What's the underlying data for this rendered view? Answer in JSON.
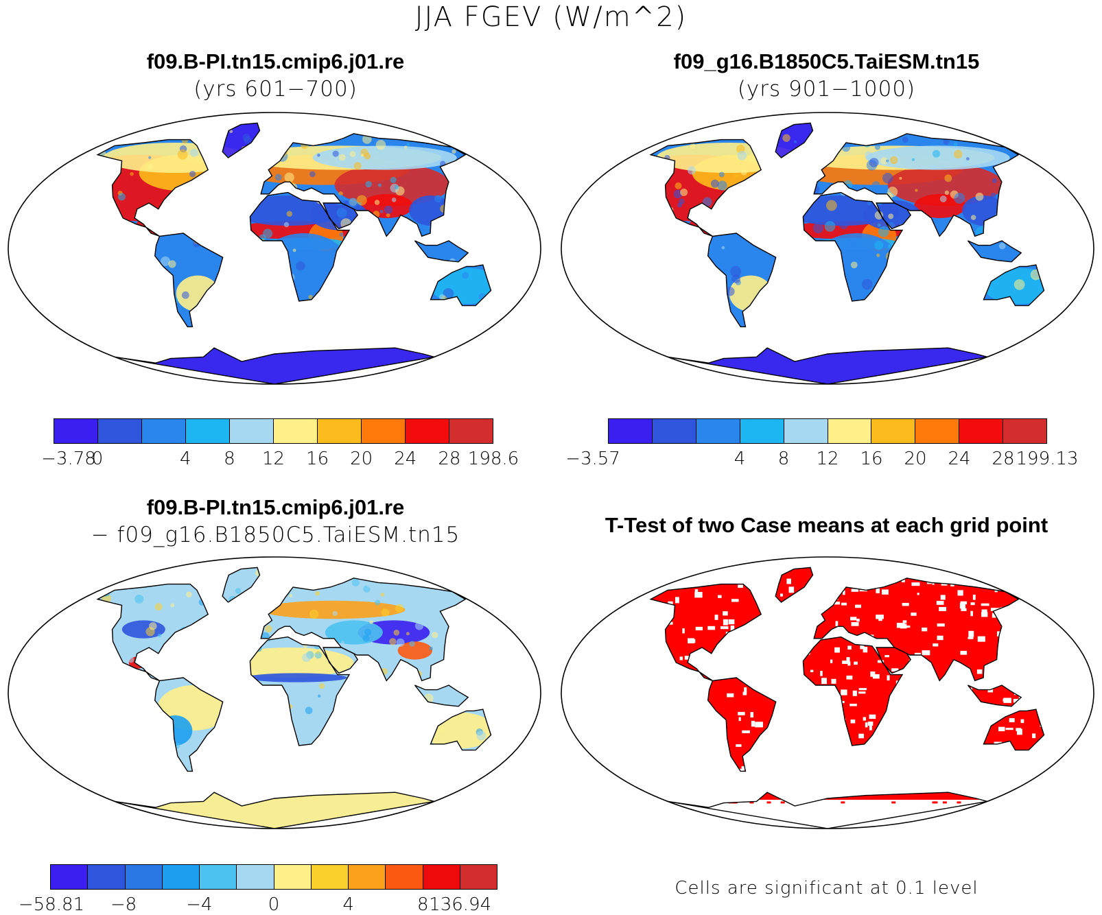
{
  "title": "JJA FGEV (W/m^2)",
  "colors": {
    "ocean": "#ffffff",
    "outline": "#000000",
    "significant": "#ff0000"
  },
  "panels": [
    {
      "title": "f09.B-PI.tn15.cmip6.j01.re",
      "subtitle": "(yrs 601−700)",
      "type": "field",
      "colorbar": {
        "colors": [
          "#3b1ff0",
          "#2f55dd",
          "#2a85ec",
          "#1eb6f2",
          "#a6d8f2",
          "#fff08a",
          "#fcbb1c",
          "#fd7a0a",
          "#f20c0c",
          "#d42d2d"
        ],
        "labels": [
          "−3.78",
          "0",
          "4",
          "8",
          "12",
          "16",
          "20",
          "24",
          "28",
          "198.6"
        ]
      }
    },
    {
      "title": "f09_g16.B1850C5.TaiESM.tn15",
      "subtitle": "(yrs 901−1000)",
      "type": "field",
      "colorbar": {
        "colors": [
          "#3b1ff0",
          "#2f55dd",
          "#2a85ec",
          "#1eb6f2",
          "#a6d8f2",
          "#fff08a",
          "#fcbb1c",
          "#fd7a0a",
          "#f20c0c",
          "#d42d2d"
        ],
        "labels": [
          "−3.57",
          "",
          "4",
          "8",
          "12",
          "16",
          "20",
          "24",
          "28",
          "199.13"
        ]
      }
    },
    {
      "title": "f09.B-PI.tn15.cmip6.j01.re",
      "subtitle": "− f09_g16.B1850C5.TaiESM.tn15",
      "type": "difference",
      "colorbar": {
        "colors": [
          "#3b1ff0",
          "#2f55dd",
          "#2a78e6",
          "#1ea0f0",
          "#4cc2f0",
          "#a6d8f2",
          "#fff08a",
          "#fcd02c",
          "#fca21c",
          "#fc5a12",
          "#ee0a0a",
          "#d42d2d"
        ],
        "labels": [
          "−58.81",
          "−8",
          "",
          "−4",
          "",
          "0",
          "",
          "4",
          "",
          "8",
          "136.94"
        ]
      }
    },
    {
      "title": "T-Test of two Case means at each grid point",
      "subtitle": "",
      "type": "ttest",
      "note": "Cells are significant at 0.1 level"
    }
  ]
}
